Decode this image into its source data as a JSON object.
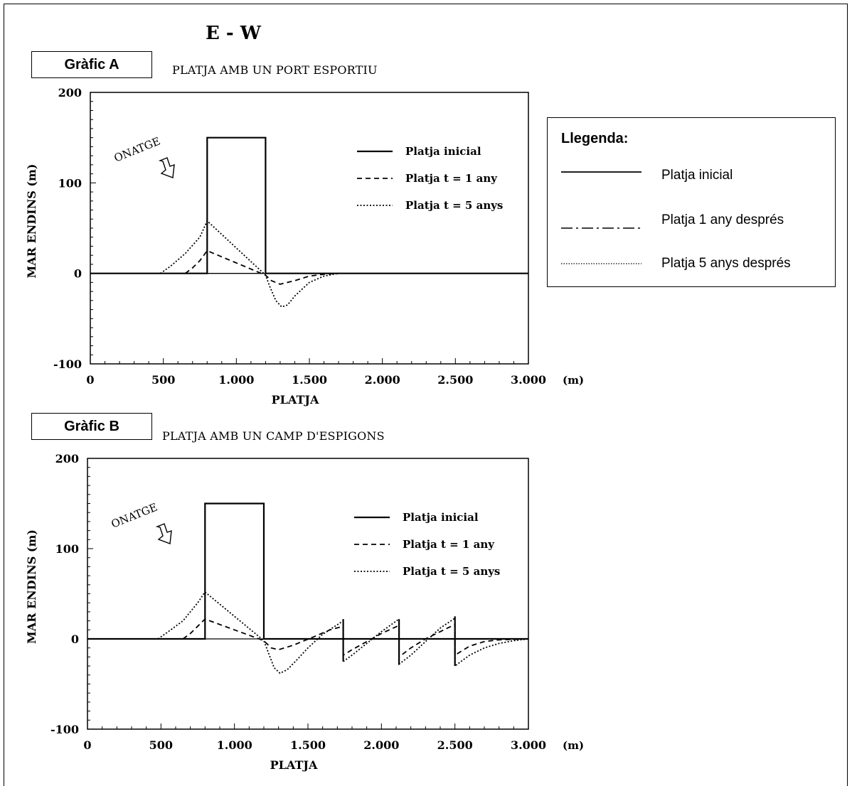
{
  "header": {
    "title": "E - W"
  },
  "legend": {
    "title": "Llegenda:",
    "items": [
      {
        "label": "Platja inicial",
        "style": "solid"
      },
      {
        "label": "Platja 1 any després",
        "style": "dashdot"
      },
      {
        "label": "Platja 5 anys després",
        "style": "dotted"
      }
    ]
  },
  "chart_data": [
    {
      "type": "line",
      "label": "Gràfic A",
      "title": "PLATJA AMB UN PORT ESPORTIU",
      "xlabel": "PLATJA",
      "xunit": "(m)",
      "ylabel": "MAR ENDINS  (m)",
      "xlim": [
        0,
        3000
      ],
      "ylim": [
        -100,
        200
      ],
      "xticks": [
        "0",
        "500",
        "1.000",
        "1.500",
        "2.000",
        "2.500",
        "3.000"
      ],
      "yticks": [
        "200",
        "100",
        "0",
        "-100"
      ],
      "annotation": "ONATGE",
      "inner_legend": [
        "Platja inicial",
        "Platja t = 1 any",
        "Platja t = 5 anys"
      ],
      "series": [
        {
          "name": "Platja inicial",
          "style": "solid",
          "points": [
            [
              0,
              0
            ],
            [
              800,
              0
            ],
            [
              800,
              150
            ],
            [
              1200,
              150
            ],
            [
              1200,
              100
            ],
            [
              1200,
              0
            ],
            [
              3000,
              0
            ]
          ]
        },
        {
          "name": "Platja t = 1 any",
          "style": "dashed",
          "points": [
            [
              650,
              0
            ],
            [
              700,
              6
            ],
            [
              750,
              14
            ],
            [
              800,
              25
            ],
            [
              1200,
              -2
            ],
            [
              1240,
              -8
            ],
            [
              1300,
              -12
            ],
            [
              1400,
              -8
            ],
            [
              1500,
              -3
            ],
            [
              1600,
              -1
            ],
            [
              1700,
              0
            ]
          ]
        },
        {
          "name": "Platja t = 5 anys",
          "style": "dotted",
          "points": [
            [
              480,
              0
            ],
            [
              550,
              8
            ],
            [
              650,
              22
            ],
            [
              750,
              40
            ],
            [
              800,
              58
            ],
            [
              1200,
              -2
            ],
            [
              1230,
              -15
            ],
            [
              1270,
              -30
            ],
            [
              1310,
              -37
            ],
            [
              1350,
              -35
            ],
            [
              1400,
              -25
            ],
            [
              1500,
              -10
            ],
            [
              1600,
              -3
            ],
            [
              1700,
              0
            ]
          ]
        }
      ]
    },
    {
      "type": "line",
      "label": "Gràfic B",
      "title": "PLATJA AMB UN CAMP D'ESPIGONS",
      "xlabel": "PLATJA",
      "xunit": "(m)",
      "ylabel": "MAR ENDINS  (m)",
      "xlim": [
        0,
        3000
      ],
      "ylim": [
        -100,
        200
      ],
      "xticks": [
        "0",
        "500",
        "1.000",
        "1.500",
        "2.000",
        "2.500",
        "3.000"
      ],
      "yticks": [
        "200",
        "100",
        "0",
        "-100"
      ],
      "annotation": "ONATGE",
      "inner_legend": [
        "Platja inicial",
        "Platja t = 1 any",
        "Platja t = 5 anys"
      ],
      "series": [
        {
          "name": "Platja inicial",
          "style": "solid",
          "points": [
            [
              0,
              0
            ],
            [
              800,
              0
            ],
            [
              800,
              150
            ],
            [
              1200,
              150
            ],
            [
              1200,
              100
            ],
            [
              1200,
              0
            ],
            [
              1740,
              0
            ],
            [
              1740,
              22
            ],
            [
              1740,
              -25
            ],
            [
              1740,
              0
            ],
            [
              2120,
              0
            ],
            [
              2120,
              22
            ],
            [
              2120,
              -28
            ],
            [
              2120,
              0
            ],
            [
              2500,
              0
            ],
            [
              2500,
              25
            ],
            [
              2500,
              -30
            ],
            [
              2500,
              0
            ],
            [
              3000,
              0
            ]
          ]
        },
        {
          "name": "Platja t = 1 any",
          "style": "dashed",
          "points": [
            [
              650,
              0
            ],
            [
              700,
              6
            ],
            [
              750,
              14
            ],
            [
              800,
              22
            ],
            [
              1200,
              -2
            ],
            [
              1250,
              -10
            ],
            [
              1300,
              -12
            ],
            [
              1400,
              -7
            ],
            [
              1550,
              3
            ],
            [
              1650,
              10
            ],
            [
              1740,
              14
            ],
            [
              1740,
              -18
            ],
            [
              1800,
              -12
            ],
            [
              1900,
              -3
            ],
            [
              2000,
              6
            ],
            [
              2120,
              15
            ],
            [
              2120,
              -20
            ],
            [
              2200,
              -10
            ],
            [
              2300,
              0
            ],
            [
              2400,
              8
            ],
            [
              2500,
              16
            ],
            [
              2500,
              -18
            ],
            [
              2600,
              -8
            ],
            [
              2700,
              -3
            ],
            [
              2800,
              -1
            ],
            [
              3000,
              0
            ]
          ]
        },
        {
          "name": "Platja t = 5 anys",
          "style": "dotted",
          "points": [
            [
              480,
              0
            ],
            [
              550,
              8
            ],
            [
              650,
              20
            ],
            [
              750,
              40
            ],
            [
              800,
              52
            ],
            [
              1200,
              -2
            ],
            [
              1230,
              -15
            ],
            [
              1270,
              -32
            ],
            [
              1310,
              -38
            ],
            [
              1360,
              -34
            ],
            [
              1420,
              -24
            ],
            [
              1500,
              -10
            ],
            [
              1600,
              5
            ],
            [
              1740,
              20
            ],
            [
              1740,
              -25
            ],
            [
              1800,
              -18
            ],
            [
              1900,
              -5
            ],
            [
              2000,
              8
            ],
            [
              2120,
              22
            ],
            [
              2120,
              -28
            ],
            [
              2200,
              -18
            ],
            [
              2300,
              -3
            ],
            [
              2400,
              12
            ],
            [
              2500,
              23
            ],
            [
              2500,
              -30
            ],
            [
              2600,
              -18
            ],
            [
              2700,
              -10
            ],
            [
              2800,
              -5
            ],
            [
              2900,
              -2
            ],
            [
              3000,
              0
            ]
          ]
        }
      ]
    }
  ]
}
